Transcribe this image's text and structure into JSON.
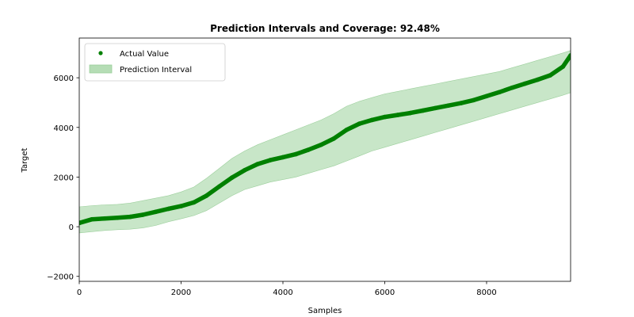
{
  "chart_data": {
    "type": "line",
    "title": "Prediction Intervals and Coverage: 92.48%",
    "xlabel": "Samples",
    "ylabel": "Target",
    "xlim": [
      0,
      9650
    ],
    "ylim": [
      -2200,
      7600
    ],
    "xticks": [
      0,
      2000,
      4000,
      6000,
      8000
    ],
    "yticks": [
      -2000,
      0,
      2000,
      4000,
      6000
    ],
    "xtick_labels": [
      "0",
      "2000",
      "4000",
      "6000",
      "8000"
    ],
    "ytick_labels": [
      "−2000",
      "0",
      "2000",
      "4000",
      "6000"
    ],
    "legend_position": "upper-left",
    "grid": false,
    "colors": {
      "actual": "#008000",
      "interval_fill": "#b5ddb5",
      "interval_edge": "#9ccf9c"
    },
    "series": [
      {
        "name": "Actual Value",
        "kind": "points",
        "x": [
          0,
          250,
          500,
          750,
          1000,
          1250,
          1500,
          1750,
          2000,
          2250,
          2500,
          2750,
          3000,
          3250,
          3500,
          3750,
          4000,
          4250,
          4500,
          4750,
          5000,
          5250,
          5500,
          5750,
          6000,
          6250,
          6500,
          6750,
          7000,
          7250,
          7500,
          7750,
          8000,
          8250,
          8500,
          8750,
          9000,
          9250,
          9500,
          9650
        ],
        "y": [
          150,
          300,
          330,
          360,
          400,
          480,
          600,
          720,
          830,
          980,
          1250,
          1620,
          1980,
          2280,
          2520,
          2680,
          2800,
          2920,
          3100,
          3300,
          3550,
          3900,
          4150,
          4300,
          4420,
          4500,
          4580,
          4680,
          4780,
          4880,
          4980,
          5100,
          5260,
          5420,
          5600,
          5760,
          5920,
          6100,
          6450,
          6900
        ]
      },
      {
        "name": "Prediction Interval",
        "kind": "band",
        "x": [
          0,
          250,
          500,
          750,
          1000,
          1250,
          1500,
          1750,
          2000,
          2250,
          2500,
          2750,
          3000,
          3250,
          3500,
          3750,
          4000,
          4250,
          4500,
          4750,
          5000,
          5250,
          5500,
          5750,
          6000,
          6250,
          6500,
          6750,
          7000,
          7250,
          7500,
          7750,
          8000,
          8250,
          8500,
          8750,
          9000,
          9250,
          9500,
          9650
        ],
        "lower": [
          -250,
          -200,
          -150,
          -120,
          -100,
          -50,
          50,
          200,
          320,
          450,
          650,
          950,
          1250,
          1500,
          1650,
          1800,
          1900,
          2000,
          2150,
          2300,
          2450,
          2650,
          2850,
          3050,
          3200,
          3350,
          3500,
          3650,
          3800,
          3950,
          4100,
          4250,
          4400,
          4550,
          4700,
          4850,
          5000,
          5150,
          5300,
          5400
        ],
        "upper": [
          800,
          850,
          880,
          900,
          950,
          1050,
          1150,
          1250,
          1400,
          1600,
          1950,
          2350,
          2750,
          3050,
          3300,
          3500,
          3700,
          3900,
          4100,
          4300,
          4550,
          4850,
          5050,
          5200,
          5350,
          5450,
          5550,
          5650,
          5750,
          5850,
          5950,
          6050,
          6150,
          6250,
          6400,
          6550,
          6700,
          6850,
          7000,
          7100
        ]
      }
    ]
  }
}
